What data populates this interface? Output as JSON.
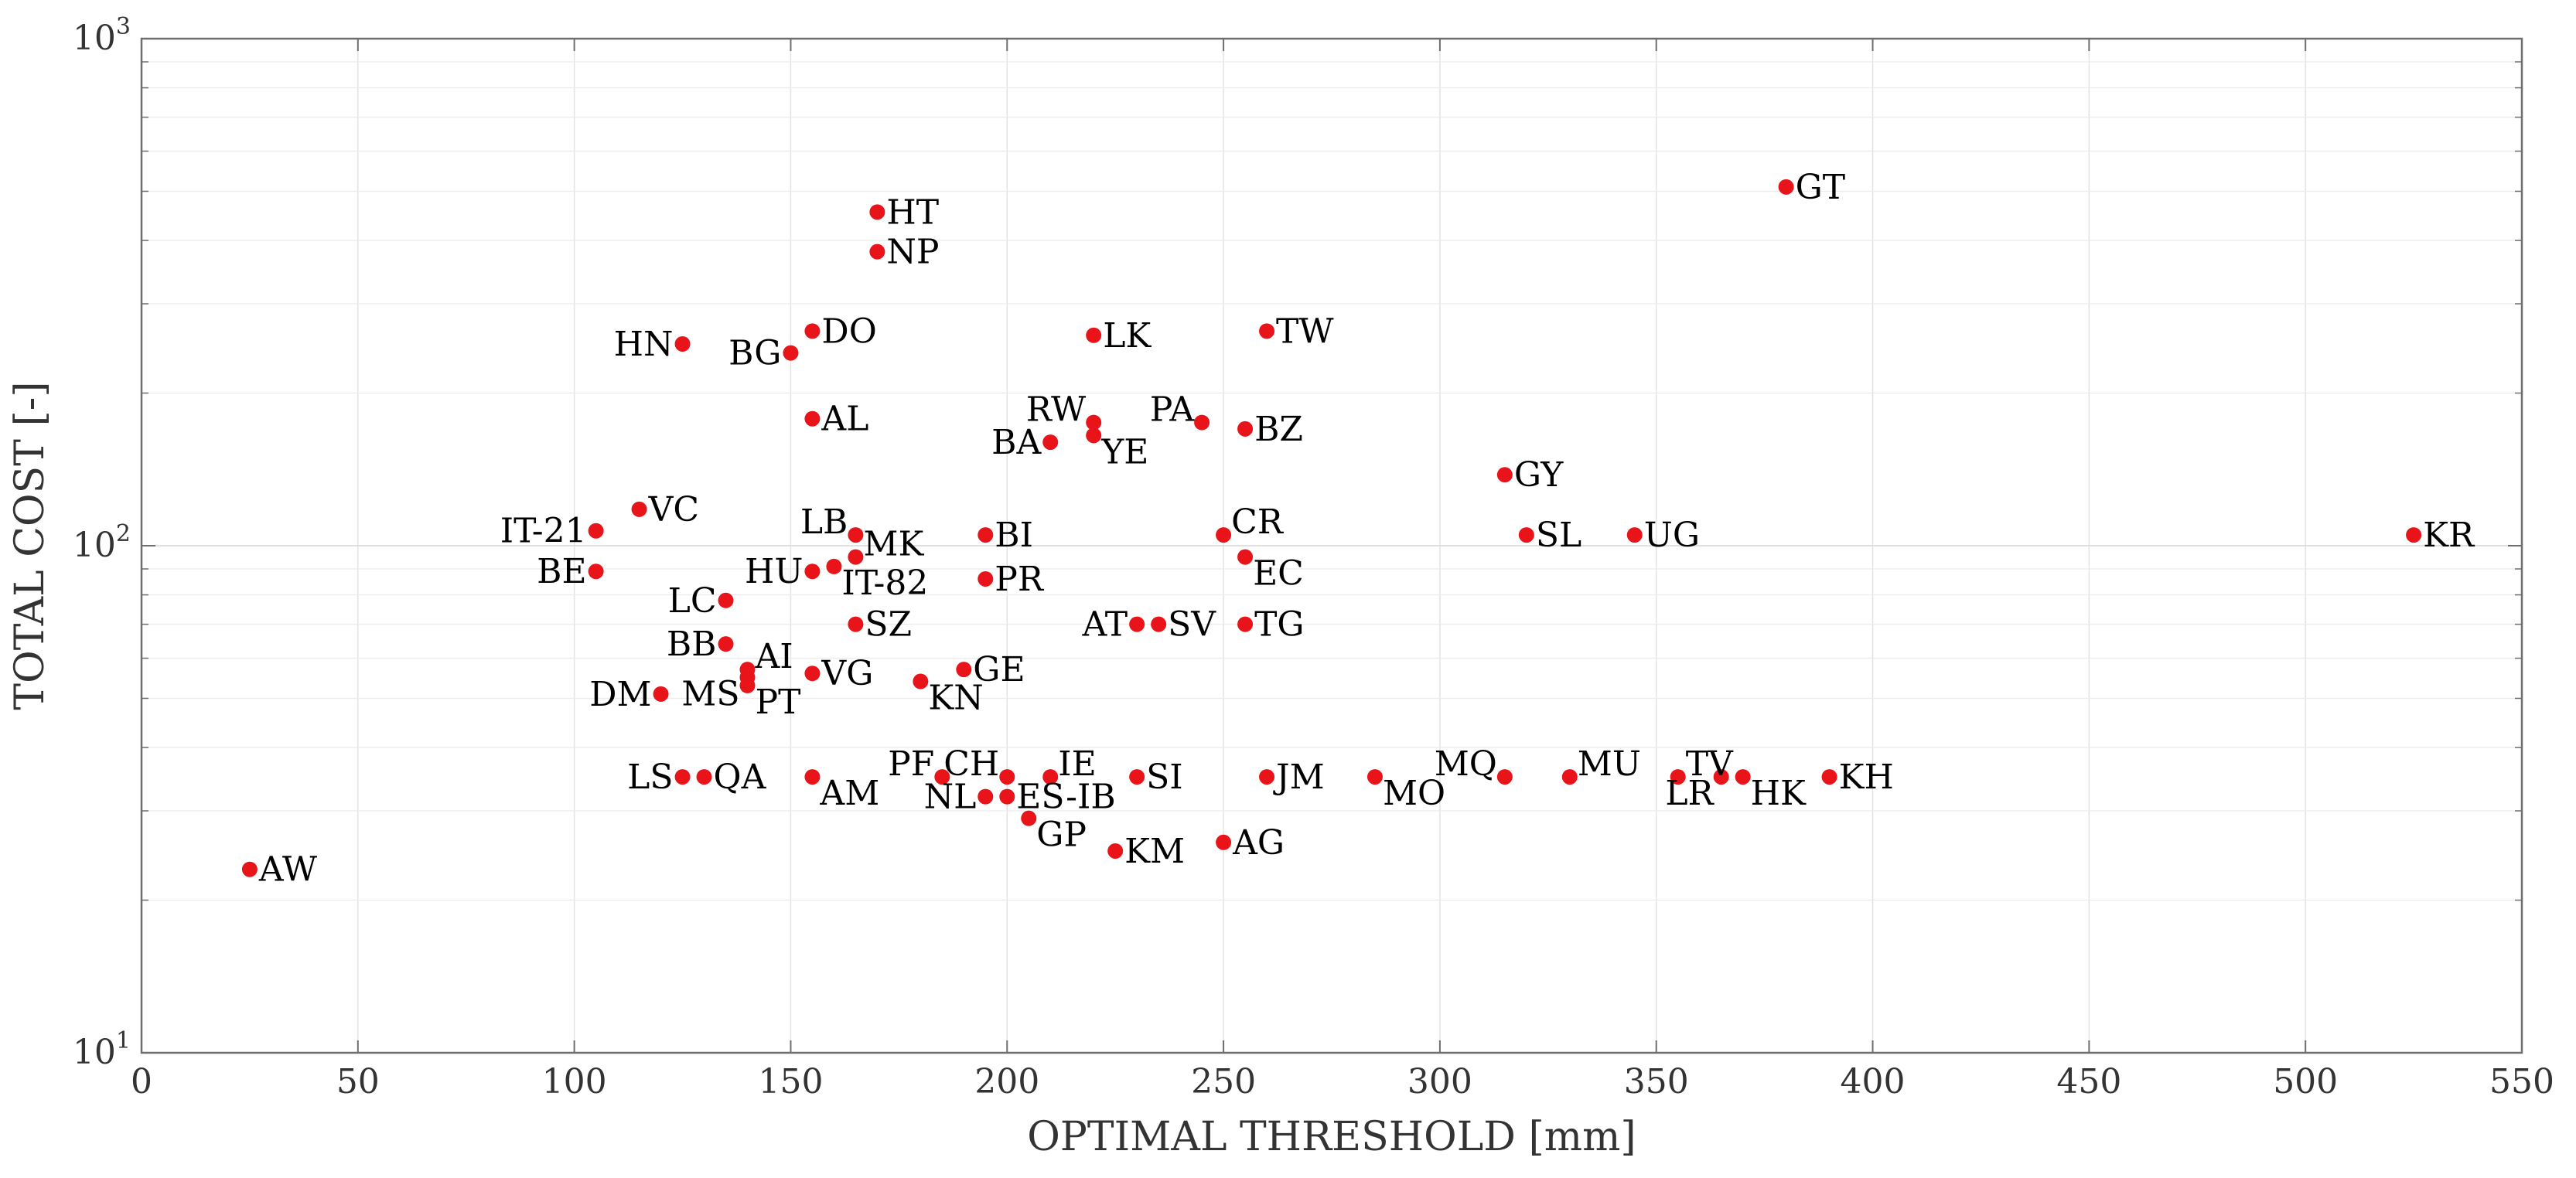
{
  "chart_data": {
    "type": "scatter",
    "title": "",
    "xlabel": "OPTIMAL THRESHOLD [mm]",
    "ylabel": "TOTAL COST [-]",
    "xlim": [
      0,
      550
    ],
    "ylim": [
      10,
      1000
    ],
    "yscale": "log",
    "grid": true,
    "marker_color": "#e8141a",
    "x_ticks": [
      0,
      50,
      100,
      150,
      200,
      250,
      300,
      350,
      400,
      450,
      500,
      550
    ],
    "y_ticks": [
      {
        "value": 10,
        "base": "10",
        "exp": "1"
      },
      {
        "value": 100,
        "base": "10",
        "exp": "2"
      },
      {
        "value": 1000,
        "base": "10",
        "exp": "3"
      }
    ],
    "points": [
      {
        "label": "AW",
        "x": 25,
        "y": 23,
        "pos": "right"
      },
      {
        "label": "IT-21",
        "x": 105,
        "y": 107,
        "pos": "left"
      },
      {
        "label": "BE",
        "x": 105,
        "y": 89,
        "pos": "left"
      },
      {
        "label": "VC",
        "x": 115,
        "y": 118,
        "pos": "right"
      },
      {
        "label": "DM",
        "x": 120,
        "y": 51,
        "pos": "left"
      },
      {
        "label": "HN",
        "x": 125,
        "y": 250,
        "pos": "left"
      },
      {
        "label": "LS",
        "x": 125,
        "y": 35,
        "pos": "left"
      },
      {
        "label": "QA",
        "x": 130,
        "y": 35,
        "pos": "right"
      },
      {
        "label": "LC",
        "x": 135,
        "y": 78,
        "pos": "left"
      },
      {
        "label": "BB",
        "x": 135,
        "y": 64,
        "pos": "left"
      },
      {
        "label": "AI",
        "x": 140,
        "y": 57,
        "pos": "right-up"
      },
      {
        "label": "MS",
        "x": 140,
        "y": 55,
        "pos": "left-down"
      },
      {
        "label": "PT",
        "x": 140,
        "y": 53,
        "pos": "right-down"
      },
      {
        "label": "BG",
        "x": 150,
        "y": 240,
        "pos": "left"
      },
      {
        "label": "DO",
        "x": 155,
        "y": 265,
        "pos": "right"
      },
      {
        "label": "AL",
        "x": 155,
        "y": 178,
        "pos": "right"
      },
      {
        "label": "HU",
        "x": 155,
        "y": 89,
        "pos": "left"
      },
      {
        "label": "VG",
        "x": 155,
        "y": 56,
        "pos": "right"
      },
      {
        "label": "AM",
        "x": 155,
        "y": 35,
        "pos": "right-down"
      },
      {
        "label": "IT-82",
        "x": 160,
        "y": 91,
        "pos": "right-down"
      },
      {
        "label": "LB",
        "x": 165,
        "y": 105,
        "pos": "left-up"
      },
      {
        "label": "MK",
        "x": 165,
        "y": 95,
        "pos": "right-up"
      },
      {
        "label": "SZ",
        "x": 165,
        "y": 70,
        "pos": "right"
      },
      {
        "label": "HT",
        "x": 170,
        "y": 455,
        "pos": "right"
      },
      {
        "label": "NP",
        "x": 170,
        "y": 380,
        "pos": "right"
      },
      {
        "label": "KN",
        "x": 180,
        "y": 54,
        "pos": "right-down"
      },
      {
        "label": "PF",
        "x": 185,
        "y": 35,
        "pos": "left-up"
      },
      {
        "label": "GE",
        "x": 190,
        "y": 57,
        "pos": "right"
      },
      {
        "label": "BI",
        "x": 195,
        "y": 105,
        "pos": "right"
      },
      {
        "label": "PR",
        "x": 195,
        "y": 86,
        "pos": "right"
      },
      {
        "label": "NL",
        "x": 195,
        "y": 32,
        "pos": "left"
      },
      {
        "label": "CH",
        "x": 200,
        "y": 35,
        "pos": "left-up"
      },
      {
        "label": "ES-IB",
        "x": 200,
        "y": 32,
        "pos": "right"
      },
      {
        "label": "GP",
        "x": 205,
        "y": 29,
        "pos": "right-down"
      },
      {
        "label": "BA",
        "x": 210,
        "y": 160,
        "pos": "left"
      },
      {
        "label": "IE",
        "x": 210,
        "y": 35,
        "pos": "right-up"
      },
      {
        "label": "LK",
        "x": 220,
        "y": 260,
        "pos": "right"
      },
      {
        "label": "RW",
        "x": 220,
        "y": 175,
        "pos": "left-up"
      },
      {
        "label": "YE",
        "x": 220,
        "y": 165,
        "pos": "right-down"
      },
      {
        "label": "KM",
        "x": 225,
        "y": 25,
        "pos": "right"
      },
      {
        "label": "AT",
        "x": 230,
        "y": 70,
        "pos": "left"
      },
      {
        "label": "SI",
        "x": 230,
        "y": 35,
        "pos": "right"
      },
      {
        "label": "SV",
        "x": 235,
        "y": 70,
        "pos": "right"
      },
      {
        "label": "PA",
        "x": 245,
        "y": 175,
        "pos": "left-up"
      },
      {
        "label": "CR",
        "x": 250,
        "y": 105,
        "pos": "right-up"
      },
      {
        "label": "AG",
        "x": 250,
        "y": 26,
        "pos": "right"
      },
      {
        "label": "BZ",
        "x": 255,
        "y": 170,
        "pos": "right"
      },
      {
        "label": "EC",
        "x": 255,
        "y": 95,
        "pos": "right-down"
      },
      {
        "label": "TG",
        "x": 255,
        "y": 70,
        "pos": "right"
      },
      {
        "label": "TW",
        "x": 260,
        "y": 265,
        "pos": "right"
      },
      {
        "label": "JM",
        "x": 260,
        "y": 35,
        "pos": "right"
      },
      {
        "label": "MO",
        "x": 285,
        "y": 35,
        "pos": "right-down"
      },
      {
        "label": "GY",
        "x": 315,
        "y": 138,
        "pos": "right"
      },
      {
        "label": "MQ",
        "x": 315,
        "y": 35,
        "pos": "left-up"
      },
      {
        "label": "SL",
        "x": 320,
        "y": 105,
        "pos": "right"
      },
      {
        "label": "MU",
        "x": 330,
        "y": 35,
        "pos": "right-up"
      },
      {
        "label": "UG",
        "x": 345,
        "y": 105,
        "pos": "right"
      },
      {
        "label": "TV",
        "x": 355,
        "y": 35,
        "pos": "right-up"
      },
      {
        "label": "LR",
        "x": 365,
        "y": 35,
        "pos": "left-down"
      },
      {
        "label": "HK",
        "x": 370,
        "y": 35,
        "pos": "right-down"
      },
      {
        "label": "GT",
        "x": 380,
        "y": 510,
        "pos": "right"
      },
      {
        "label": "KH",
        "x": 390,
        "y": 35,
        "pos": "right"
      },
      {
        "label": "KR",
        "x": 525,
        "y": 105,
        "pos": "right"
      }
    ]
  }
}
